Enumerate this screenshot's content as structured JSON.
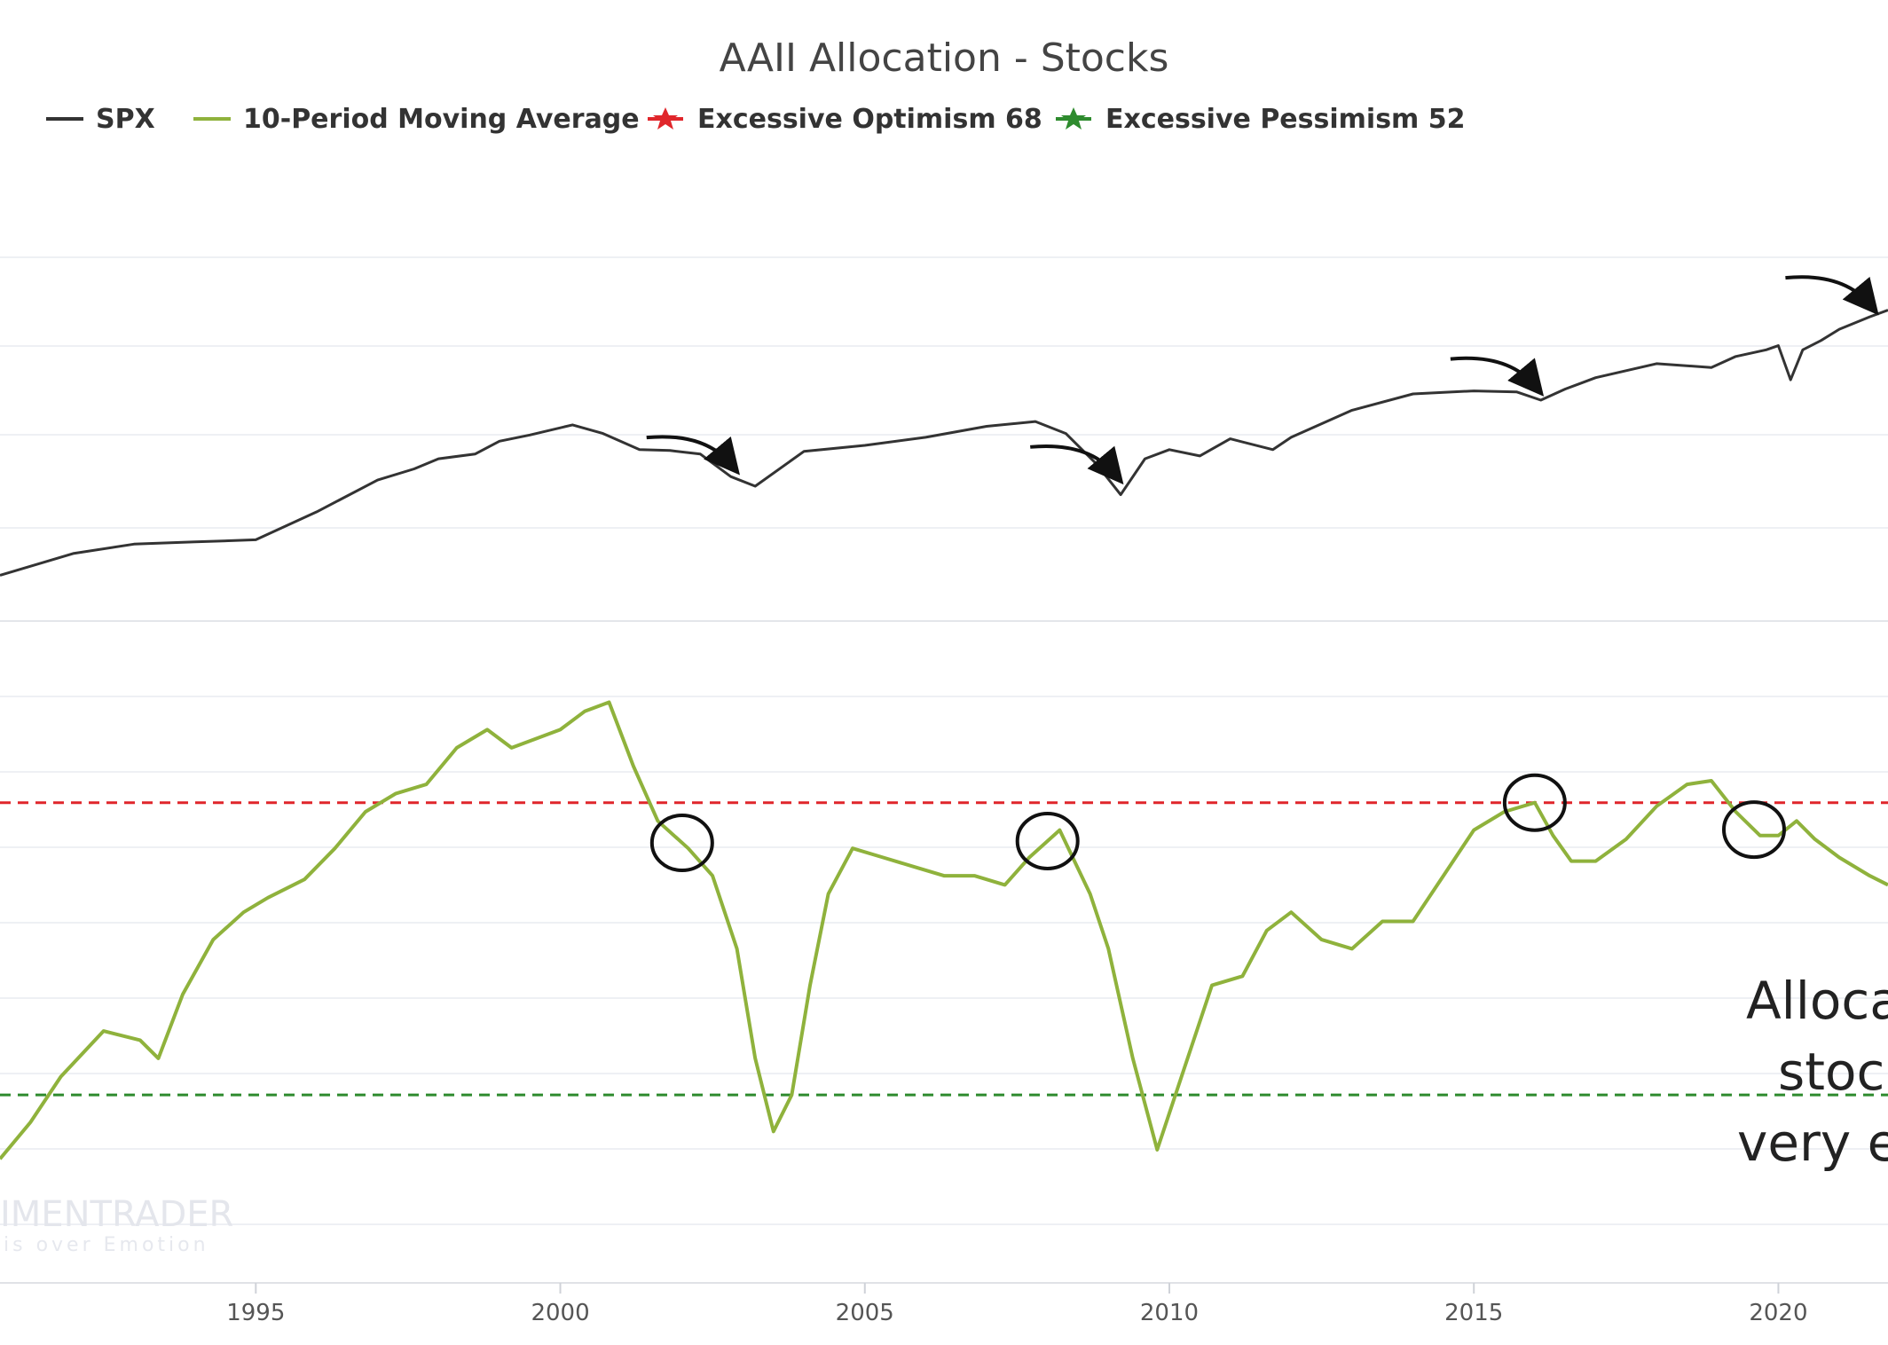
{
  "chart_data": {
    "type": "line",
    "title": "AAII Allocation - Stocks",
    "legend": {
      "placement": "top",
      "entries": [
        {
          "id": "spx",
          "label": "SPX",
          "color": "#333333",
          "marker": "line"
        },
        {
          "id": "ma",
          "label": "10-Period Moving Average",
          "color": "#8fb23c",
          "marker": "line"
        },
        {
          "id": "opt",
          "label": "Excessive Optimism 68",
          "color": "#e0262b",
          "marker": "star"
        },
        {
          "id": "pes",
          "label": "Excessive Pessimism 52",
          "color": "#2e8b2e",
          "marker": "star"
        }
      ]
    },
    "x_ticks": [
      "1995",
      "2000",
      "2005",
      "2010",
      "2015",
      "2020"
    ],
    "x_range": [
      1990.8,
      2021.8
    ],
    "grid": true,
    "panels": {
      "spx": {
        "scale": "log",
        "y_range": [
          250,
          5000
        ],
        "series": {
          "name": "SPX",
          "color": "#333333",
          "x": [
            1990.8,
            1992.0,
            1993.0,
            1994.0,
            1995.0,
            1996.0,
            1997.0,
            1997.6,
            1998.0,
            1998.6,
            1999.0,
            1999.5,
            2000.2,
            2000.7,
            2001.3,
            2001.8,
            2002.3,
            2002.8,
            2003.2,
            2004.0,
            2005.0,
            2006.0,
            2007.0,
            2007.8,
            2008.3,
            2008.8,
            2009.2,
            2009.6,
            2010.0,
            2010.5,
            2011.0,
            2011.7,
            2012.0,
            2013.0,
            2014.0,
            2015.0,
            2015.7,
            2016.1,
            2016.5,
            2017.0,
            2018.0,
            2018.9,
            2019.3,
            2019.8,
            2020.0,
            2020.2,
            2020.4,
            2020.7,
            2021.0,
            2021.5,
            2021.8
          ],
          "values": [
            330,
            410,
            450,
            460,
            470,
            620,
            850,
            950,
            1050,
            1100,
            1250,
            1330,
            1470,
            1350,
            1150,
            1140,
            1100,
            880,
            800,
            1130,
            1200,
            1300,
            1450,
            1520,
            1350,
            1000,
            735,
            1050,
            1150,
            1080,
            1280,
            1150,
            1300,
            1700,
            2000,
            2060,
            2040,
            1880,
            2100,
            2350,
            2700,
            2600,
            2900,
            3100,
            3230,
            2300,
            3100,
            3400,
            3800,
            4300,
            4600
          ]
        }
      },
      "allocation": {
        "y_range": [
          42,
          76
        ],
        "series": {
          "name": "10-Period Moving Average",
          "color": "#8fb23c",
          "x": [
            1990.8,
            1991.3,
            1991.8,
            1992.5,
            1993.1,
            1993.4,
            1993.8,
            1994.3,
            1994.8,
            1995.2,
            1995.8,
            1996.3,
            1996.8,
            1997.3,
            1997.8,
            1998.3,
            1998.8,
            1999.2,
            1999.6,
            2000.0,
            2000.4,
            2000.8,
            2001.2,
            2001.6,
            2002.1,
            2002.5,
            2002.9,
            2003.2,
            2003.5,
            2003.8,
            2004.1,
            2004.4,
            2004.8,
            2005.3,
            2005.8,
            2006.3,
            2006.8,
            2007.3,
            2007.7,
            2008.2,
            2008.7,
            2009.0,
            2009.4,
            2009.8,
            2010.2,
            2010.7,
            2011.2,
            2011.6,
            2012.0,
            2012.5,
            2013.0,
            2013.5,
            2014.0,
            2014.5,
            2015.0,
            2015.5,
            2016.0,
            2016.3,
            2016.6,
            2017.0,
            2017.5,
            2018.0,
            2018.5,
            2018.9,
            2019.3,
            2019.7,
            2020.0,
            2020.3,
            2020.6,
            2021.0,
            2021.5,
            2021.8
          ],
          "values": [
            48.5,
            50.5,
            53,
            55.5,
            55,
            54,
            57.5,
            60.5,
            62,
            62.8,
            63.8,
            65.5,
            67.5,
            68.5,
            69,
            71,
            72,
            71,
            71.5,
            72,
            73,
            73.5,
            70,
            67,
            65.5,
            64,
            60,
            54,
            50,
            52,
            58,
            63,
            65.5,
            65,
            64.5,
            64,
            64,
            63.5,
            65,
            66.5,
            63,
            60,
            54,
            49,
            53,
            58,
            58.5,
            61,
            62,
            60.5,
            60,
            61.5,
            61.5,
            64,
            66.5,
            67.5,
            68,
            66.2,
            64.8,
            64.8,
            66,
            67.8,
            69,
            69.2,
            67.5,
            66.2,
            66.2,
            67,
            66,
            65,
            64,
            63.5
          ]
        },
        "thresholds": [
          {
            "label": "Excessive Optimism",
            "value": 68,
            "color": "#e0262b"
          },
          {
            "label": "Excessive Pessimism",
            "value": 52,
            "color": "#2e8b2e"
          }
        ]
      }
    },
    "annotations": {
      "text_lines": [
        "Alloca",
        "stock",
        "very el"
      ],
      "arrows_x": [
        2002.8,
        2009.1,
        2016.0,
        2021.5
      ],
      "circles_x": [
        2002.0,
        2008.0,
        2016.0,
        2019.6
      ]
    },
    "watermark": {
      "main": "IMENTRADER",
      "sub": "is over Emotion"
    }
  }
}
